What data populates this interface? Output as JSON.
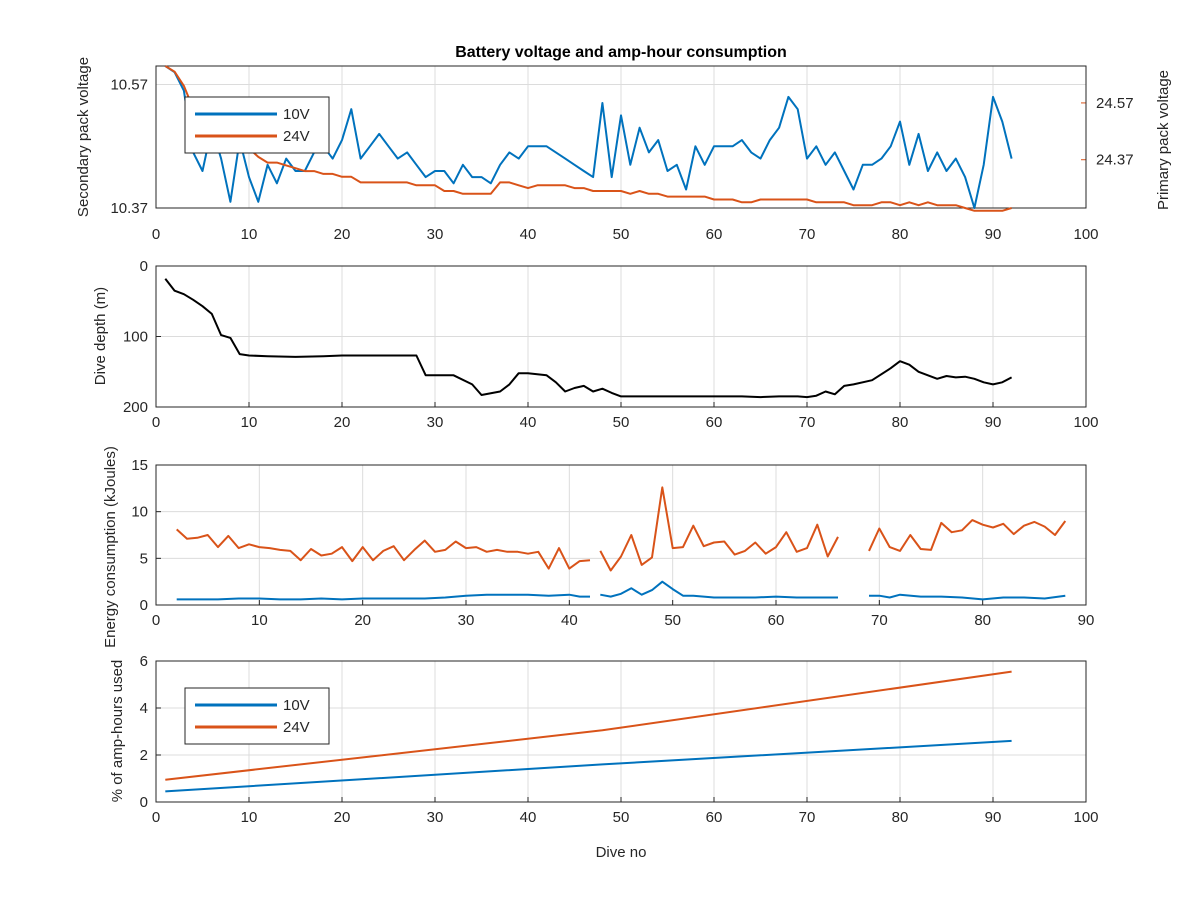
{
  "colors": {
    "10V": "#0072BD",
    "24V": "#D95319",
    "depth": "#000000",
    "text": "#262626",
    "grid": "#DCDCDC"
  },
  "chart_data": [
    {
      "type": "line",
      "title": "Battery voltage and amp-hour consumption",
      "xlabel": "",
      "ylabel_left": "Secondary pack voltage",
      "ylabel_right": "Primary pack voltage",
      "xlim": [
        0,
        100
      ],
      "xticks": [
        0,
        10,
        20,
        30,
        40,
        50,
        60,
        70,
        80,
        90,
        100
      ],
      "ylim_left": [
        10.37,
        10.6
      ],
      "yticks_left": [
        10.37,
        10.57
      ],
      "ylim_right": [
        24.2,
        24.7
      ],
      "yticks_right": [
        24.37,
        24.57
      ],
      "grid": true,
      "legend": {
        "location": "top-left",
        "entries": [
          "10V",
          "24V"
        ]
      },
      "series": [
        {
          "name": "10V",
          "axis": "left",
          "x": [
            1,
            2,
            3,
            4,
            5,
            6,
            7,
            8,
            9,
            10,
            11,
            12,
            13,
            14,
            15,
            16,
            17,
            18,
            19,
            20,
            21,
            22,
            23,
            24,
            25,
            26,
            27,
            28,
            29,
            30,
            31,
            32,
            33,
            34,
            35,
            36,
            37,
            38,
            39,
            40,
            41,
            42,
            43,
            44,
            45,
            46,
            47,
            48,
            49,
            50,
            51,
            52,
            53,
            54,
            55,
            56,
            57,
            58,
            59,
            60,
            61,
            62,
            63,
            64,
            65,
            66,
            67,
            68,
            69,
            70,
            71,
            72,
            73,
            74,
            75,
            76,
            77,
            78,
            79,
            80,
            81,
            82,
            83,
            84,
            85,
            86,
            87,
            88,
            89,
            90,
            91,
            92
          ],
          "y": [
            10.6,
            10.59,
            10.56,
            10.46,
            10.43,
            10.5,
            10.45,
            10.38,
            10.48,
            10.42,
            10.38,
            10.44,
            10.41,
            10.45,
            10.43,
            10.43,
            10.46,
            10.47,
            10.45,
            10.48,
            10.53,
            10.45,
            10.47,
            10.49,
            10.47,
            10.45,
            10.46,
            10.44,
            10.42,
            10.43,
            10.43,
            10.41,
            10.44,
            10.42,
            10.42,
            10.41,
            10.44,
            10.46,
            10.45,
            10.47,
            10.47,
            10.47,
            10.46,
            10.45,
            10.44,
            10.43,
            10.42,
            10.54,
            10.42,
            10.52,
            10.44,
            10.5,
            10.46,
            10.48,
            10.43,
            10.44,
            10.4,
            10.47,
            10.44,
            10.47,
            10.47,
            10.47,
            10.48,
            10.46,
            10.45,
            10.48,
            10.5,
            10.55,
            10.53,
            10.45,
            10.47,
            10.44,
            10.46,
            10.43,
            10.4,
            10.44,
            10.44,
            10.45,
            10.47,
            10.51,
            10.44,
            10.49,
            10.43,
            10.46,
            10.43,
            10.45,
            10.42,
            10.37,
            10.44,
            10.55,
            10.51,
            10.45
          ]
        },
        {
          "name": "24V",
          "axis": "right",
          "x": [
            1,
            2,
            3,
            4,
            5,
            6,
            7,
            8,
            9,
            10,
            11,
            12,
            13,
            14,
            15,
            16,
            17,
            18,
            19,
            20,
            21,
            22,
            23,
            24,
            25,
            26,
            27,
            28,
            29,
            30,
            31,
            32,
            33,
            34,
            35,
            36,
            37,
            38,
            39,
            40,
            41,
            42,
            43,
            44,
            45,
            46,
            47,
            48,
            49,
            50,
            51,
            52,
            53,
            54,
            55,
            56,
            57,
            58,
            59,
            60,
            61,
            62,
            63,
            64,
            65,
            66,
            67,
            68,
            69,
            70,
            71,
            72,
            73,
            74,
            75,
            76,
            77,
            78,
            79,
            80,
            81,
            82,
            83,
            84,
            85,
            86,
            87,
            88,
            89,
            90,
            91,
            92
          ],
          "y": [
            24.7,
            24.68,
            24.63,
            24.55,
            24.5,
            24.47,
            24.45,
            24.43,
            24.42,
            24.41,
            24.38,
            24.36,
            24.36,
            24.35,
            24.34,
            24.33,
            24.33,
            24.32,
            24.32,
            24.31,
            24.31,
            24.29,
            24.29,
            24.29,
            24.29,
            24.29,
            24.29,
            24.28,
            24.28,
            24.28,
            24.26,
            24.26,
            24.25,
            24.25,
            24.25,
            24.25,
            24.29,
            24.29,
            24.28,
            24.27,
            24.28,
            24.28,
            24.28,
            24.28,
            24.27,
            24.27,
            24.26,
            24.26,
            24.26,
            24.26,
            24.25,
            24.26,
            24.25,
            24.25,
            24.24,
            24.24,
            24.24,
            24.24,
            24.24,
            24.23,
            24.23,
            24.23,
            24.22,
            24.22,
            24.23,
            24.23,
            24.23,
            24.23,
            24.23,
            24.23,
            24.22,
            24.22,
            24.22,
            24.22,
            24.21,
            24.21,
            24.21,
            24.22,
            24.22,
            24.21,
            24.22,
            24.21,
            24.22,
            24.21,
            24.21,
            24.21,
            24.2,
            24.19,
            24.19,
            24.19,
            24.19,
            24.2
          ]
        }
      ]
    },
    {
      "type": "line",
      "ylabel": "Dive depth (m)",
      "xlim": [
        0,
        100
      ],
      "xticks": [
        0,
        10,
        20,
        30,
        40,
        50,
        60,
        70,
        80,
        90,
        100
      ],
      "ylim": [
        0,
        200
      ],
      "yticks": [
        0,
        100,
        200
      ],
      "y_reversed": true,
      "grid": true,
      "series": [
        {
          "x": [
            1,
            2,
            3,
            4,
            5,
            6,
            7,
            8,
            9,
            10,
            12,
            15,
            18,
            20,
            22,
            25,
            28,
            29,
            32,
            34,
            35,
            37,
            38,
            39,
            40,
            42,
            43,
            44,
            45,
            46,
            47,
            48,
            49,
            50,
            52,
            55,
            58,
            60,
            63,
            65,
            67,
            69,
            70,
            71,
            72,
            73,
            74,
            75,
            77,
            79,
            80,
            81,
            82,
            83,
            84,
            85,
            86,
            87,
            88,
            89,
            90,
            91,
            92
          ],
          "y": [
            18,
            35,
            40,
            48,
            57,
            68,
            98,
            102,
            125,
            127,
            128,
            129,
            128,
            127,
            127,
            127,
            127,
            155,
            155,
            168,
            183,
            178,
            168,
            152,
            152,
            155,
            165,
            178,
            173,
            170,
            178,
            174,
            180,
            185,
            185,
            185,
            185,
            185,
            185,
            186,
            185,
            185,
            186,
            184,
            178,
            182,
            170,
            168,
            162,
            145,
            135,
            140,
            150,
            155,
            160,
            156,
            158,
            157,
            160,
            165,
            168,
            165,
            158
          ]
        }
      ]
    },
    {
      "type": "line",
      "ylabel": "Energy consumption (kJoules)",
      "xlim": [
        0,
        90
      ],
      "xticks": [
        0,
        10,
        20,
        30,
        40,
        50,
        60,
        70,
        80,
        90
      ],
      "ylim": [
        0,
        15
      ],
      "yticks": [
        0,
        5,
        10,
        15
      ],
      "grid": true,
      "series": [
        {
          "name": "24V",
          "segments": [
            {
              "x": [
                2,
                3,
                4,
                5,
                6,
                7,
                8,
                9,
                10,
                11,
                12,
                13,
                14,
                15,
                16,
                17,
                18,
                19,
                20,
                21,
                22,
                23,
                24,
                25,
                26,
                27,
                28,
                29,
                30,
                31,
                32,
                33,
                34,
                35,
                36,
                37,
                38,
                39,
                40,
                41,
                42
              ],
              "y": [
                8.1,
                7.1,
                7.2,
                7.5,
                6.2,
                7.4,
                6.1,
                6.5,
                6.2,
                6.1,
                5.9,
                5.8,
                4.8,
                6,
                5.3,
                5.5,
                6.2,
                4.7,
                6.2,
                4.8,
                5.8,
                6.3,
                4.8,
                5.9,
                6.9,
                5.7,
                5.9,
                6.8,
                6.1,
                6.2,
                5.7,
                5.9,
                5.7,
                5.7,
                5.5,
                5.7,
                3.9,
                6.1,
                3.9,
                4.7,
                4.8
              ]
            },
            {
              "x": [
                43,
                44,
                45,
                46,
                47,
                48,
                49,
                50,
                51,
                52,
                53,
                54,
                55,
                56,
                57,
                58,
                59,
                60,
                61,
                62,
                63,
                64,
                65,
                66
              ],
              "y": [
                5.8,
                3.7,
                5.2,
                7.5,
                4.3,
                5.1,
                12.6,
                6.1,
                6.2,
                8.5,
                6.3,
                6.7,
                6.8,
                5.4,
                5.8,
                6.7,
                5.5,
                6.2,
                7.8,
                5.7,
                6.1,
                8.6,
                5.2,
                7.3
              ]
            },
            {
              "x": [
                69,
                70,
                71,
                72,
                73,
                74,
                75,
                76,
                77,
                78,
                79,
                80,
                81,
                82,
                83,
                84,
                85,
                86,
                87,
                88
              ],
              "y": [
                5.8,
                8.2,
                6.2,
                5.8,
                7.5,
                6,
                5.9,
                8.8,
                7.8,
                8,
                9.1,
                8.6,
                8.3,
                8.7,
                7.6,
                8.5,
                8.9,
                8.4,
                7.5,
                9
              ]
            }
          ]
        },
        {
          "name": "10V",
          "segments": [
            {
              "x": [
                2,
                4,
                6,
                8,
                10,
                12,
                14,
                16,
                18,
                20,
                22,
                24,
                26,
                28,
                30,
                32,
                34,
                36,
                38,
                40,
                41,
                42
              ],
              "y": [
                0.6,
                0.6,
                0.6,
                0.7,
                0.7,
                0.6,
                0.6,
                0.7,
                0.6,
                0.7,
                0.7,
                0.7,
                0.7,
                0.8,
                1.0,
                1.1,
                1.1,
                1.1,
                1.0,
                1.1,
                0.9,
                0.9
              ]
            },
            {
              "x": [
                43,
                44,
                45,
                46,
                47,
                48,
                49,
                50,
                51,
                52,
                54,
                56,
                58,
                60,
                62,
                64,
                66
              ],
              "y": [
                1.1,
                0.9,
                1.2,
                1.8,
                1.1,
                1.6,
                2.5,
                1.7,
                1.0,
                1.0,
                0.8,
                0.8,
                0.8,
                0.9,
                0.8,
                0.8,
                0.8
              ]
            },
            {
              "x": [
                69,
                70,
                71,
                72,
                74,
                76,
                78,
                80,
                82,
                84,
                86,
                88
              ],
              "y": [
                1.0,
                1.0,
                0.8,
                1.1,
                0.9,
                0.9,
                0.8,
                0.6,
                0.8,
                0.8,
                0.7,
                1.0
              ]
            }
          ]
        }
      ]
    },
    {
      "type": "line",
      "ylabel": "% of amp-hours used",
      "xlabel": "Dive no",
      "xlim": [
        0,
        100
      ],
      "xticks": [
        0,
        10,
        20,
        30,
        40,
        50,
        60,
        70,
        80,
        90,
        100
      ],
      "ylim": [
        0,
        6
      ],
      "yticks": [
        0,
        2,
        4,
        6
      ],
      "grid": true,
      "legend": {
        "location": "top-left",
        "entries": [
          "10V",
          "24V"
        ]
      },
      "series": [
        {
          "name": "10V",
          "x": [
            1,
            48,
            92
          ],
          "y": [
            0.45,
            1.6,
            2.6
          ]
        },
        {
          "name": "24V",
          "x": [
            1,
            48,
            92
          ],
          "y": [
            0.95,
            3.05,
            5.55
          ]
        }
      ]
    }
  ]
}
